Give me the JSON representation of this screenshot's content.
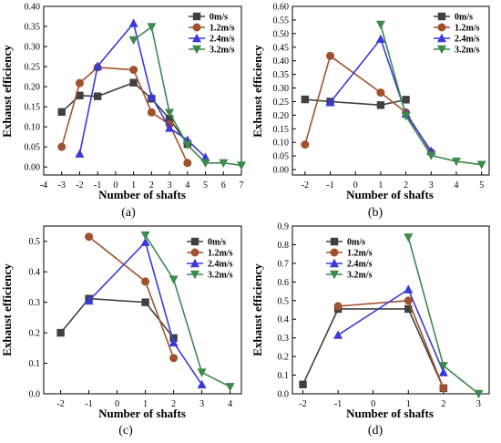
{
  "chart_data": [
    {
      "panel": "(a)",
      "type": "line",
      "xlabel": "Number of shafts",
      "ylabel": "Exhaust efficiency",
      "xlim": [
        -4,
        7
      ],
      "ylim": [
        -0.02,
        0.4
      ],
      "xticks": [
        "-4",
        "-3",
        "-2",
        "-1",
        "0",
        "1",
        "2",
        "3",
        "4",
        "5",
        "6",
        "7"
      ],
      "yticks": [
        "0.00",
        "0.05",
        "0.10",
        "0.15",
        "0.20",
        "0.25",
        "0.30",
        "0.35",
        "0.40"
      ],
      "legend_position": "top-right",
      "series": [
        {
          "name": "0m/s",
          "color": "#404040",
          "marker": "square",
          "x": [
            -3,
            -2,
            -1,
            1,
            2,
            3,
            4
          ],
          "y": [
            0.137,
            0.178,
            0.176,
            0.21,
            0.17,
            0.12,
            0.057
          ]
        },
        {
          "name": "1.2m/s",
          "color": "#a0522d",
          "marker": "circle",
          "x": [
            -3,
            -2,
            -1,
            1,
            2,
            3,
            4
          ],
          "y": [
            0.05,
            0.209,
            0.248,
            0.242,
            0.136,
            0.106,
            0.01
          ]
        },
        {
          "name": "2.4m/s",
          "color": "#3a3ad8",
          "marker": "triangle-up",
          "x": [
            -2,
            -1,
            1,
            2,
            3,
            4,
            5
          ],
          "y": [
            0.033,
            0.251,
            0.358,
            0.175,
            0.097,
            0.067,
            0.024
          ]
        },
        {
          "name": "3.2m/s",
          "color": "#3c8a4c",
          "marker": "triangle-down",
          "x": [
            1,
            2,
            3,
            4,
            5,
            6,
            7
          ],
          "y": [
            0.316,
            0.349,
            0.135,
            0.055,
            0.01,
            0.01,
            0.004
          ]
        }
      ]
    },
    {
      "panel": "(b)",
      "type": "line",
      "xlabel": "Number of shafts",
      "ylabel": "Exhaust efficiency",
      "xlim": [
        -2.5,
        5.3
      ],
      "ylim": [
        -0.02,
        0.6
      ],
      "xticks": [
        "-2",
        "-1",
        "0",
        "1",
        "2",
        "3",
        "4",
        "5"
      ],
      "yticks": [
        "0.00",
        "0.05",
        "0.10",
        "0.15",
        "0.20",
        "0.25",
        "0.30",
        "0.35",
        "0.40",
        "0.45",
        "0.50",
        "0.55",
        "0.60"
      ],
      "legend_position": "top-right",
      "series": [
        {
          "name": "0m/s",
          "color": "#404040",
          "marker": "square",
          "x": [
            -2,
            -1,
            1,
            2
          ],
          "y": [
            0.258,
            0.25,
            0.237,
            0.257
          ]
        },
        {
          "name": "1.2m/s",
          "color": "#a0522d",
          "marker": "circle",
          "x": [
            -2,
            -1,
            1,
            2,
            3
          ],
          "y": [
            0.092,
            0.418,
            0.283,
            0.21,
            0.063
          ]
        },
        {
          "name": "2.4m/s",
          "color": "#3a3ad8",
          "marker": "triangle-up",
          "x": [
            -1,
            1,
            2,
            3
          ],
          "y": [
            0.247,
            0.48,
            0.205,
            0.068
          ]
        },
        {
          "name": "3.2m/s",
          "color": "#3c8a4c",
          "marker": "triangle-down",
          "x": [
            1,
            2,
            3,
            4,
            5
          ],
          "y": [
            0.533,
            0.197,
            0.052,
            0.03,
            0.018
          ]
        }
      ]
    },
    {
      "panel": "(c)",
      "type": "line",
      "xlabel": "Number of shafts",
      "ylabel": "Exhaust efficiency",
      "xlim": [
        -2.6,
        4.4
      ],
      "ylim": [
        0.0,
        0.55
      ],
      "xticks": [
        "-2",
        "-1",
        "0",
        "1",
        "2",
        "3",
        "4"
      ],
      "yticks": [
        "0.0",
        "0.1",
        "0.2",
        "0.3",
        "0.4",
        "0.5"
      ],
      "legend_position": "top-right",
      "series": [
        {
          "name": "0m/s",
          "color": "#404040",
          "marker": "square",
          "x": [
            -2,
            -1,
            1,
            2
          ],
          "y": [
            0.2,
            0.312,
            0.3,
            0.183
          ]
        },
        {
          "name": "1.2m/s",
          "color": "#a0522d",
          "marker": "circle",
          "x": [
            -1,
            1,
            2
          ],
          "y": [
            0.515,
            0.368,
            0.117
          ]
        },
        {
          "name": "2.4m/s",
          "color": "#3a3ad8",
          "marker": "triangle-up",
          "x": [
            -1,
            1,
            2,
            3
          ],
          "y": [
            0.305,
            0.497,
            0.168,
            0.03
          ]
        },
        {
          "name": "3.2m/s",
          "color": "#3c8a4c",
          "marker": "triangle-down",
          "x": [
            1,
            2,
            3,
            4
          ],
          "y": [
            0.52,
            0.375,
            0.07,
            0.023
          ]
        }
      ]
    },
    {
      "panel": "(d)",
      "type": "line",
      "xlabel": "Number of shafts",
      "ylabel": "Exhaust efficiency",
      "xlim": [
        -2.3,
        3.3
      ],
      "ylim": [
        0.0,
        0.9
      ],
      "xticks": [
        "-2",
        "-1",
        "0",
        "1",
        "2",
        "3"
      ],
      "yticks": [
        "0.0",
        "0.1",
        "0.2",
        "0.3",
        "0.4",
        "0.5",
        "0.6",
        "0.7",
        "0.8",
        "0.9"
      ],
      "legend_position": "top-left",
      "series": [
        {
          "name": "0m/s",
          "color": "#404040",
          "marker": "square",
          "x": [
            -2,
            -1,
            1,
            2
          ],
          "y": [
            0.05,
            0.455,
            0.455,
            0.03
          ]
        },
        {
          "name": "1.2m/s",
          "color": "#a0522d",
          "marker": "circle",
          "x": [
            -1,
            1,
            2
          ],
          "y": [
            0.47,
            0.5,
            0.03
          ]
        },
        {
          "name": "2.4m/s",
          "color": "#3a3ad8",
          "marker": "triangle-up",
          "x": [
            -1,
            1,
            2
          ],
          "y": [
            0.315,
            0.56,
            0.115
          ]
        },
        {
          "name": "3.2m/s",
          "color": "#3c8a4c",
          "marker": "triangle-down",
          "x": [
            1,
            2,
            3
          ],
          "y": [
            0.84,
            0.15,
            0.0
          ]
        }
      ]
    }
  ]
}
